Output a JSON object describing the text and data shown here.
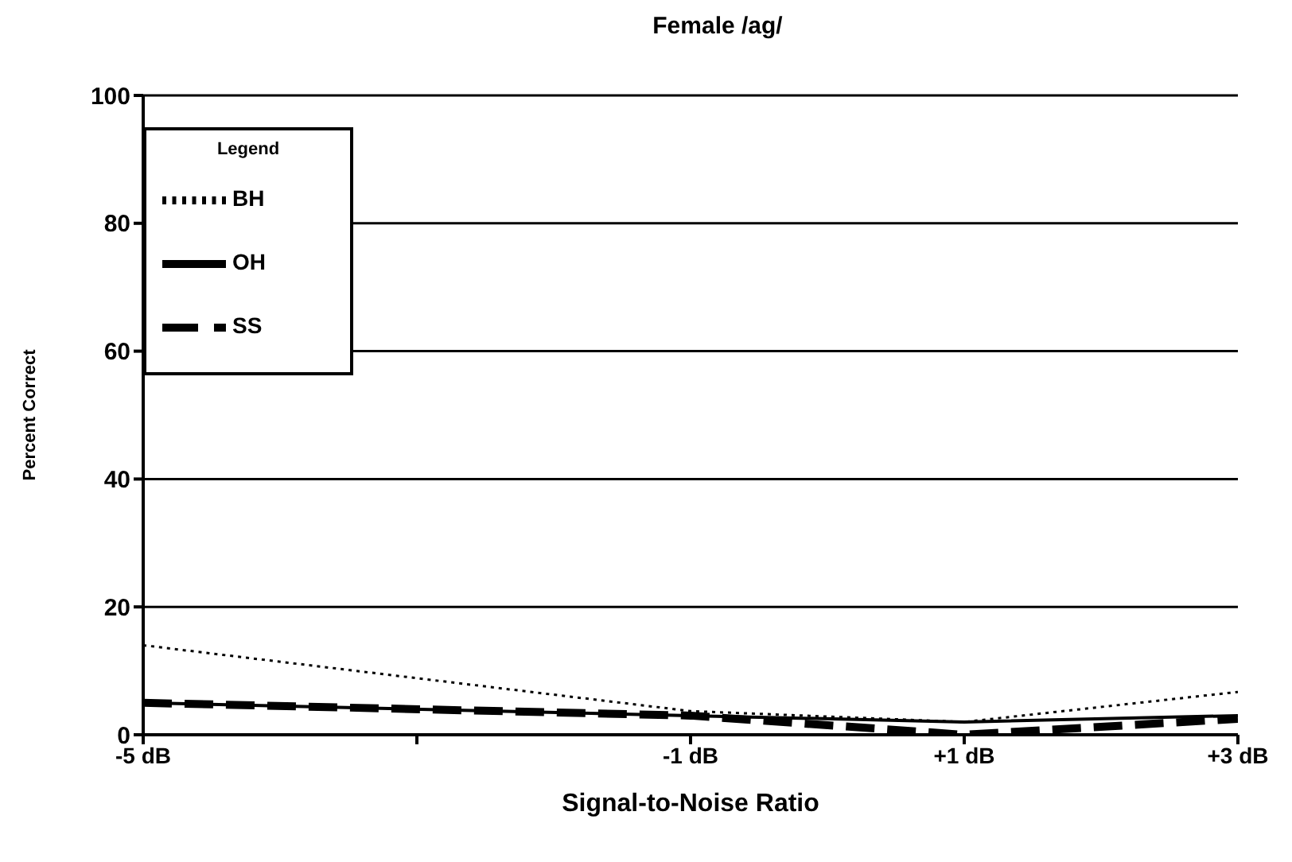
{
  "chart_data": {
    "type": "line",
    "title": "Female /ag/",
    "xlabel": "Signal-to-Noise Ratio",
    "ylabel": "Percent Correct",
    "legend_title": "Legend",
    "legend": "top left",
    "grid": "y",
    "marker": "none",
    "x": [
      -5,
      -1,
      1,
      3
    ],
    "xlim": [
      -5,
      3
    ],
    "xticks": [
      {
        "value": -5,
        "label": "-5 dB"
      },
      {
        "value": -3,
        "label": null
      },
      {
        "value": -1,
        "label": "-1 dB"
      },
      {
        "value": 1,
        "label": "+1 dB"
      },
      {
        "value": 3,
        "label": "+3 dB"
      }
    ],
    "ylim": [
      0,
      100
    ],
    "yticks": [
      0,
      20,
      40,
      60,
      80,
      100
    ],
    "series": [
      {
        "name": "SS",
        "color": "#000000",
        "line_style": "dashed",
        "values": [
          5,
          3,
          0,
          2.5
        ]
      },
      {
        "name": "OH",
        "color": "#000000",
        "line_style": "solid",
        "values": [
          5,
          3,
          2,
          3
        ]
      },
      {
        "name": "BH",
        "color": "#000000",
        "line_style": "dotted",
        "values": [
          14,
          3.7,
          2,
          6.7
        ]
      }
    ]
  }
}
